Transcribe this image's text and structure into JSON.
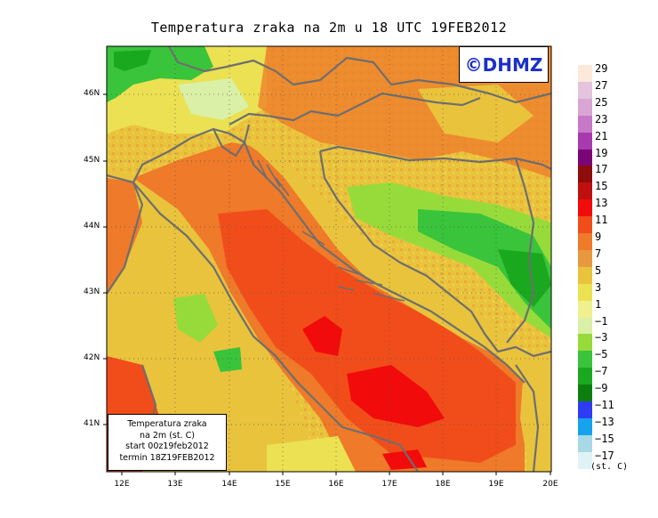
{
  "title": "Temperatura zraka na 2m u 18 UTC 19FEB2012",
  "logo": "©DHMZ",
  "infobox": {
    "line1": "Temperatura zraka",
    "line2": "na 2m (st. C)",
    "line3": "start 00z19feb2012",
    "line4": "termin 18Z19FEB2012"
  },
  "lat_ticks": [
    "46N",
    "45N",
    "44N",
    "43N",
    "42N",
    "41N"
  ],
  "lon_ticks": [
    "12E",
    "13E",
    "14E",
    "15E",
    "16E",
    "17E",
    "18E",
    "19E",
    "20E"
  ],
  "legend": {
    "levels": [
      "29",
      "27",
      "25",
      "23",
      "21",
      "19",
      "17",
      "15",
      "13",
      "11",
      "9",
      "7",
      "5",
      "3",
      "1",
      "−1",
      "−3",
      "−5",
      "−7",
      "−9",
      "−11",
      "−13",
      "−15",
      "−17"
    ],
    "colors": [
      "#fde9d9",
      "#e3c3dd",
      "#d9a6d4",
      "#c778c6",
      "#a83ab0",
      "#7b0577",
      "#8e0c0c",
      "#bf0f0f",
      "#f20b0b",
      "#f14d1a",
      "#ee7a2a",
      "#e89940",
      "#e9c33c",
      "#ebe152",
      "#f0f08e",
      "#d9f0a6",
      "#97db3a",
      "#39c43b",
      "#1aa81e",
      "#0c7e0e",
      "#2f3cf6",
      "#16a2ed",
      "#a9d8e7",
      "#dff3f6"
    ],
    "units": "(st. C)"
  },
  "colors": {
    "sea_warm": "#f14d1a",
    "sea_hot": "#f20b0b",
    "land_mild": "#e9c33c",
    "land_cool": "#39c43b",
    "border": "#6e6e6e",
    "logo_blue": "#1a2fc9"
  }
}
